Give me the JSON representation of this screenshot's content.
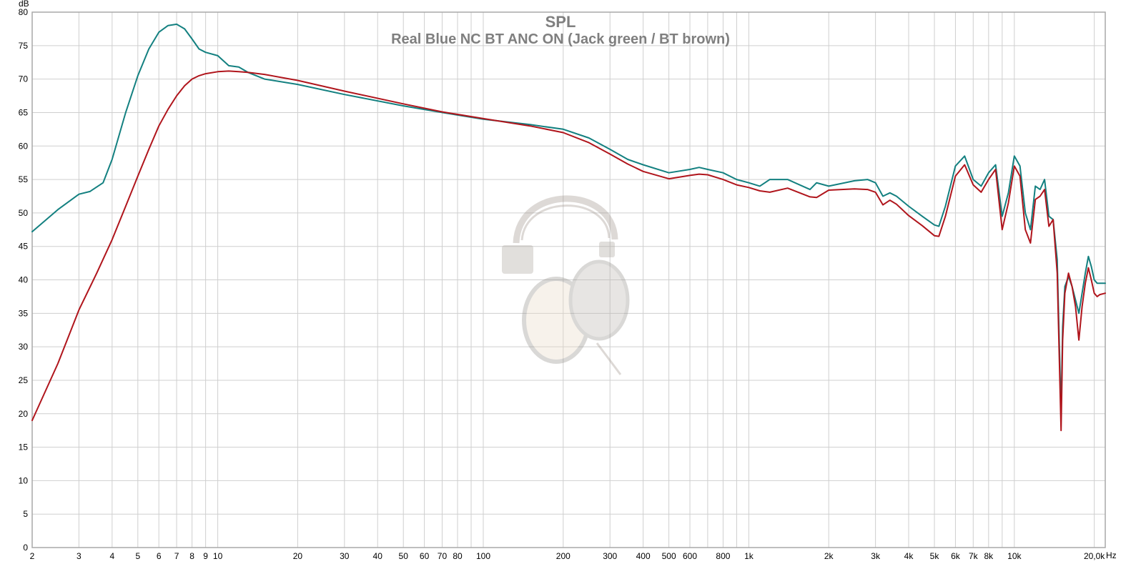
{
  "chart_data": {
    "type": "line",
    "title": "SPL",
    "subtitle": "Real Blue NC BT ANC ON (Jack green / BT brown)",
    "ylabel": "dB",
    "xunit": "Hz",
    "xscale": "log",
    "xlim": [
      2,
      22000
    ],
    "ylim": [
      0,
      80
    ],
    "grid": true,
    "yticks": [
      0,
      5,
      10,
      15,
      20,
      25,
      30,
      35,
      40,
      45,
      50,
      55,
      60,
      65,
      70,
      75,
      80
    ],
    "xticks": [
      {
        "v": 2,
        "label": "2"
      },
      {
        "v": 3,
        "label": "3"
      },
      {
        "v": 4,
        "label": "4"
      },
      {
        "v": 5,
        "label": "5"
      },
      {
        "v": 6,
        "label": "6"
      },
      {
        "v": 7,
        "label": "7"
      },
      {
        "v": 8,
        "label": "8"
      },
      {
        "v": 9,
        "label": "9"
      },
      {
        "v": 10,
        "label": "10"
      },
      {
        "v": 20,
        "label": "20"
      },
      {
        "v": 30,
        "label": "30"
      },
      {
        "v": 40,
        "label": "40"
      },
      {
        "v": 50,
        "label": "50"
      },
      {
        "v": 60,
        "label": "60"
      },
      {
        "v": 70,
        "label": "70"
      },
      {
        "v": 80,
        "label": "80"
      },
      {
        "v": 100,
        "label": "100"
      },
      {
        "v": 200,
        "label": "200"
      },
      {
        "v": 300,
        "label": "300"
      },
      {
        "v": 400,
        "label": "400"
      },
      {
        "v": 500,
        "label": "500"
      },
      {
        "v": 600,
        "label": "600"
      },
      {
        "v": 800,
        "label": "800"
      },
      {
        "v": 1000,
        "label": "1k"
      },
      {
        "v": 2000,
        "label": "2k"
      },
      {
        "v": 3000,
        "label": "3k"
      },
      {
        "v": 4000,
        "label": "4k"
      },
      {
        "v": 5000,
        "label": "5k"
      },
      {
        "v": 6000,
        "label": "6k"
      },
      {
        "v": 7000,
        "label": "7k"
      },
      {
        "v": 8000,
        "label": "8k"
      },
      {
        "v": 10000,
        "label": "10k"
      },
      {
        "v": 20000,
        "label": "20,0k"
      }
    ],
    "colors": {
      "jack": "#138080",
      "bt": "#b0151c",
      "grid": "#cfcfcf",
      "title": "#7f7f7f"
    },
    "series": [
      {
        "key": "jack",
        "x": [
          2,
          2.5,
          3,
          3.3,
          3.7,
          4,
          4.5,
          5,
          5.5,
          6,
          6.5,
          7,
          7.5,
          8,
          8.5,
          9,
          10,
          11,
          12,
          13,
          15,
          20,
          30,
          50,
          70,
          100,
          150,
          200,
          250,
          300,
          350,
          400,
          500,
          600,
          650,
          700,
          800,
          900,
          1000,
          1100,
          1200,
          1400,
          1700,
          1800,
          2000,
          2500,
          2800,
          3000,
          3200,
          3400,
          3600,
          4000,
          4500,
          5000,
          5200,
          5500,
          6000,
          6500,
          7000,
          7500,
          8000,
          8500,
          9000,
          9500,
          10000,
          10500,
          11000,
          11500,
          12000,
          12500,
          13000,
          13500,
          14000,
          14500,
          15000,
          15200,
          15500,
          16000,
          16500,
          17000,
          17500,
          18000,
          18500,
          19000,
          19500,
          20000,
          20500,
          21000,
          22000
        ],
        "y": [
          47.2,
          50.5,
          52.8,
          53.2,
          54.5,
          58,
          65,
          70.5,
          74.5,
          77,
          78,
          78.2,
          77.5,
          76,
          74.5,
          74,
          73.5,
          72,
          71.8,
          71,
          70,
          69.2,
          67.7,
          66,
          65,
          64,
          63.2,
          62.5,
          61.2,
          59.5,
          58,
          57.2,
          56,
          56.5,
          56.8,
          56.5,
          56,
          55,
          54.5,
          54,
          55,
          55,
          53.5,
          54.5,
          54,
          54.8,
          55,
          54.5,
          52.5,
          53,
          52.5,
          51,
          49.5,
          48.2,
          48,
          51,
          57,
          58.5,
          55,
          54,
          56,
          57.2,
          49.5,
          53,
          58.5,
          57,
          50,
          47.5,
          54,
          53.5,
          55,
          49.5,
          49,
          43,
          20,
          33,
          39,
          40.5,
          39,
          37,
          35,
          38,
          41,
          43.5,
          42,
          40,
          39.5,
          39.5,
          39.5
        ]
      },
      {
        "key": "bt",
        "x": [
          2,
          2.5,
          3,
          3.5,
          4,
          4.5,
          5,
          5.5,
          6,
          6.5,
          7,
          7.5,
          8,
          8.5,
          9,
          10,
          11,
          12,
          13,
          15,
          20,
          30,
          50,
          70,
          100,
          150,
          200,
          250,
          300,
          350,
          400,
          500,
          600,
          650,
          700,
          800,
          900,
          1000,
          1100,
          1200,
          1400,
          1700,
          1800,
          2000,
          2500,
          2800,
          3000,
          3200,
          3400,
          3600,
          4000,
          4500,
          5000,
          5200,
          5500,
          6000,
          6500,
          7000,
          7500,
          8000,
          8500,
          9000,
          9500,
          10000,
          10500,
          11000,
          11500,
          12000,
          12500,
          13000,
          13500,
          14000,
          14500,
          15000,
          15200,
          15500,
          16000,
          16500,
          17000,
          17500,
          18000,
          18500,
          19000,
          19500,
          20000,
          20500,
          21000,
          22000
        ],
        "y": [
          19,
          27.5,
          35.5,
          41,
          46,
          51,
          55.5,
          59.5,
          63,
          65.5,
          67.5,
          69,
          70,
          70.5,
          70.8,
          71.1,
          71.2,
          71.1,
          71,
          70.7,
          69.8,
          68.2,
          66.3,
          65.1,
          64.1,
          63,
          62,
          60.5,
          58.8,
          57.3,
          56.2,
          55.1,
          55.6,
          55.8,
          55.7,
          55,
          54.2,
          53.8,
          53.3,
          53.1,
          53.7,
          52.4,
          52.3,
          53.4,
          53.6,
          53.5,
          53.1,
          51.2,
          51.9,
          51.3,
          49.6,
          48.1,
          46.6,
          46.5,
          49.5,
          55.5,
          57.2,
          54.2,
          53.1,
          55,
          56.5,
          47.5,
          51.5,
          57,
          55.5,
          47.5,
          45.5,
          52,
          52.5,
          53.5,
          48,
          49,
          41,
          17.5,
          31,
          38,
          41,
          39,
          36,
          31,
          36,
          39.5,
          41.8,
          40,
          38,
          37.5,
          37.8,
          38
        ]
      }
    ]
  }
}
